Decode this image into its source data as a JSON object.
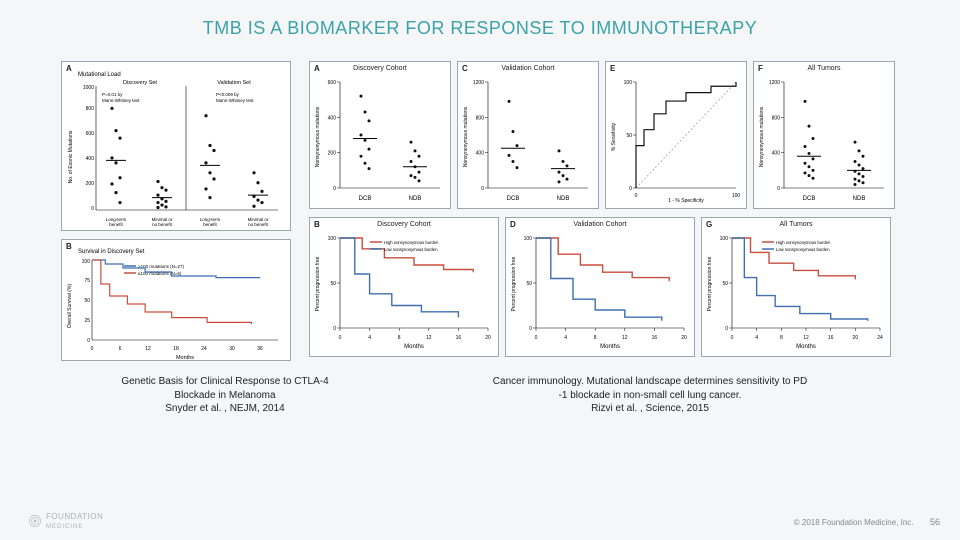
{
  "title": "TMB IS A BIOMARKER FOR RESPONSE TO IMMUNOTHERAPY",
  "colors": {
    "title": "#3ba3a8",
    "panel_bg": "#ffffff",
    "panel_border": "#9aa7af",
    "slide_bg": "#f4f6f7",
    "axis": "#000000",
    "curve_red": "#c94f3f",
    "curve_blue": "#3f6fb0",
    "point_black": "#111111"
  },
  "left_figure": {
    "panel_A": {
      "label": "A",
      "subtitle": "Mutational Load",
      "ylabel": "No. of Exonic Mutations",
      "ylim": [
        0,
        1000
      ],
      "ytick_step": 200,
      "groups": [
        "Long-term benefit",
        "Minimal or no benefit",
        "Long-term benefit",
        "Minimal or no benefit"
      ],
      "p_left": "P=0.01 by Mann-Whitney test",
      "p_right": "P<0.009 by Mann-Whitney test",
      "sections": [
        "Discovery Set",
        "Validation Set"
      ],
      "scatter": {
        "discovery_long": [
          820,
          640,
          580,
          420,
          380,
          260,
          210,
          140,
          60
        ],
        "discovery_min": [
          230,
          180,
          160,
          120,
          90,
          70,
          60,
          40,
          25,
          20
        ],
        "validation_long": [
          760,
          520,
          480,
          380,
          300,
          250,
          170,
          100
        ],
        "validation_min": [
          300,
          220,
          150,
          110,
          80,
          60,
          30
        ]
      },
      "medians": {
        "discovery_long": 400,
        "discovery_min": 100,
        "validation_long": 360,
        "validation_min": 120
      }
    },
    "panel_B": {
      "label": "B",
      "subtitle": "Survival in Discovery Set",
      "legend": [
        "≤100 mutations (N=27)",
        ">100 mutations (N=6)"
      ],
      "xlabel": "Months",
      "ylabel": "Overall Survival (%)",
      "xlim": [
        0,
        42
      ],
      "xtick_step": 6,
      "ylim": [
        0,
        100
      ],
      "ytick_step": 25,
      "curves": {
        "high": {
          "color": "#3f6fb0",
          "points": [
            [
              0,
              100
            ],
            [
              3,
              95
            ],
            [
              7,
              90
            ],
            [
              12,
              85
            ],
            [
              18,
              80
            ],
            [
              28,
              78
            ],
            [
              38,
              78
            ]
          ]
        },
        "low": {
          "color": "#c94f3f",
          "points": [
            [
              0,
              100
            ],
            [
              2,
              70
            ],
            [
              4,
              55
            ],
            [
              8,
              45
            ],
            [
              12,
              35
            ],
            [
              18,
              28
            ],
            [
              26,
              22
            ],
            [
              36,
              20
            ]
          ]
        }
      }
    }
  },
  "right_figure": {
    "row1": {
      "height": 140,
      "panels": [
        {
          "label": "A",
          "title": "Discovery Cohort",
          "ylabel": "Nonsynonymous mutations",
          "ylim": [
            0,
            600
          ],
          "ytick_step": 200,
          "groups": [
            "DCB",
            "NDB"
          ],
          "points": {
            "DCB": [
              520,
              430,
              380,
              300,
              270,
              220,
              180,
              140,
              110
            ],
            "NDB": [
              260,
              210,
              180,
              150,
              120,
              90,
              70,
              60,
              40
            ]
          },
          "medians": {
            "DCB": 280,
            "NDB": 120
          }
        },
        {
          "label": "C",
          "title": "Validation Cohort",
          "ylabel": "Nonsynonymous mutations",
          "ylim": [
            0,
            1200
          ],
          "ytick_step": 400,
          "groups": [
            "DCB",
            "NDB"
          ],
          "points": {
            "DCB": [
              980,
              640,
              480,
              370,
              300,
              230
            ],
            "NDB": [
              420,
              300,
              250,
              180,
              140,
              100,
              70
            ]
          },
          "medians": {
            "DCB": 450,
            "NDB": 220
          }
        },
        {
          "label": "E",
          "title": "",
          "ylabel": "% Sensitivity",
          "xlabel": "1 - % Specificity",
          "ylim": [
            0,
            100
          ],
          "xlim": [
            0,
            100
          ],
          "roc": [
            [
              0,
              0
            ],
            [
              0,
              40
            ],
            [
              8,
              55
            ],
            [
              18,
              70
            ],
            [
              30,
              82
            ],
            [
              50,
              90
            ],
            [
              75,
              96
            ],
            [
              100,
              100
            ]
          ]
        },
        {
          "label": "F",
          "title": "All Tumors",
          "ylabel": "Nonsynonymous mutations",
          "ylim": [
            0,
            1200
          ],
          "ytick_step": 400,
          "groups": [
            "DCB",
            "NDB"
          ],
          "points": {
            "DCB": [
              980,
              700,
              560,
              470,
              390,
              330,
              280,
              240,
              200,
              170,
              140,
              110
            ],
            "NDB": [
              520,
              420,
              360,
              300,
              260,
              220,
              190,
              160,
              130,
              100,
              80,
              60,
              40
            ]
          },
          "medians": {
            "DCB": 360,
            "NDB": 200
          }
        }
      ]
    },
    "row2": {
      "height": 136,
      "panels": [
        {
          "label": "B",
          "title": "Discovery Cohort",
          "ylabel": "Percent progression free",
          "xlabel": "Months",
          "xlim": [
            0,
            20
          ],
          "xtick_step": 4,
          "ylim": [
            0,
            100
          ],
          "ytick_step": 50,
          "legend": [
            "High nonsynonymous burden",
            "Low nonsynonymous burden"
          ],
          "curves": {
            "high": {
              "color": "#c94f3f",
              "points": [
                [
                  0,
                  100
                ],
                [
                  3,
                  88
                ],
                [
                  6,
                  78
                ],
                [
                  10,
                  70
                ],
                [
                  14,
                  65
                ],
                [
                  18,
                  62
                ]
              ]
            },
            "low": {
              "color": "#3f6fb0",
              "points": [
                [
                  0,
                  100
                ],
                [
                  2,
                  60
                ],
                [
                  4,
                  38
                ],
                [
                  7,
                  25
                ],
                [
                  11,
                  18
                ],
                [
                  16,
                  12
                ]
              ]
            }
          }
        },
        {
          "label": "D",
          "title": "Validation Cohort",
          "ylabel": "Percent progression free",
          "xlabel": "Months",
          "xlim": [
            0,
            20
          ],
          "xtick_step": 4,
          "ylim": [
            0,
            100
          ],
          "ytick_step": 50,
          "curves": {
            "high": {
              "color": "#c94f3f",
              "points": [
                [
                  0,
                  100
                ],
                [
                  3,
                  82
                ],
                [
                  6,
                  70
                ],
                [
                  9,
                  62
                ],
                [
                  13,
                  56
                ],
                [
                  18,
                  52
                ]
              ]
            },
            "low": {
              "color": "#3f6fb0",
              "points": [
                [
                  0,
                  100
                ],
                [
                  2,
                  55
                ],
                [
                  5,
                  32
                ],
                [
                  8,
                  20
                ],
                [
                  12,
                  12
                ],
                [
                  17,
                  8
                ]
              ]
            }
          }
        },
        {
          "label": "G",
          "title": "All Tumors",
          "ylabel": "Percent progression free",
          "xlabel": "Months",
          "xlim": [
            0,
            24
          ],
          "xtick_step": 4,
          "ylim": [
            0,
            100
          ],
          "ytick_step": 50,
          "legend": [
            "High nonsynonymous burden",
            "Low nonsynonymous burden"
          ],
          "curves": {
            "high": {
              "color": "#c94f3f",
              "points": [
                [
                  0,
                  100
                ],
                [
                  3,
                  84
                ],
                [
                  6,
                  72
                ],
                [
                  10,
                  64
                ],
                [
                  14,
                  58
                ],
                [
                  20,
                  54
                ]
              ]
            },
            "low": {
              "color": "#3f6fb0",
              "points": [
                [
                  0,
                  100
                ],
                [
                  2,
                  56
                ],
                [
                  4,
                  36
                ],
                [
                  7,
                  24
                ],
                [
                  11,
                  16
                ],
                [
                  16,
                  10
                ],
                [
                  22,
                  8
                ]
              ]
            }
          }
        }
      ]
    }
  },
  "captions": {
    "left": [
      "Genetic Basis for Clinical Response to CTLA-4",
      "Blockade in Melanoma",
      "Snyder et al. , NEJM, 2014"
    ],
    "right": [
      "Cancer immunology. Mutational landscape determines sensitivity to PD",
      "-1 blockade in non-small cell lung cancer.",
      "Rizvi et al. , Science, 2015"
    ]
  },
  "footer": {
    "logo_text": "FOUNDATION",
    "logo_sub": "MEDICINE",
    "copyright": "© 2018 Foundation Medicine, Inc.",
    "page": "56"
  }
}
